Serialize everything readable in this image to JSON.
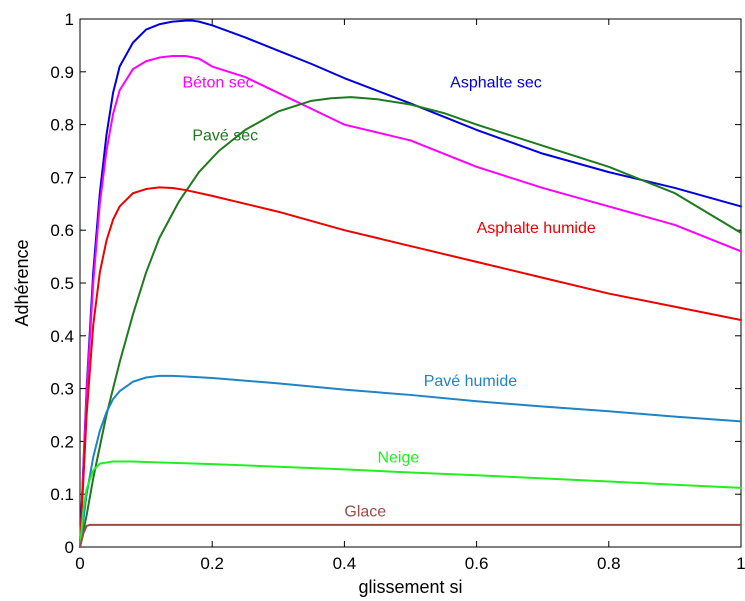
{
  "chart_data": {
    "type": "line",
    "xlabel": "glissement si",
    "ylabel": "Adhérence",
    "xlim": [
      0,
      1
    ],
    "ylim": [
      0,
      1
    ],
    "xticks": [
      "0",
      "0.2",
      "0.4",
      "0.6",
      "0.8",
      "1"
    ],
    "yticks": [
      "0",
      "0.1",
      "0.2",
      "0.3",
      "0.4",
      "0.5",
      "0.6",
      "0.7",
      "0.8",
      "0.9",
      "1"
    ],
    "grid": false,
    "series": [
      {
        "name": "Asphalte sec",
        "color": "#0000dd",
        "x": [
          0,
          0.01,
          0.02,
          0.03,
          0.04,
          0.05,
          0.06,
          0.08,
          0.1,
          0.12,
          0.14,
          0.16,
          0.17,
          0.18,
          0.2,
          0.25,
          0.3,
          0.35,
          0.4,
          0.5,
          0.6,
          0.7,
          0.8,
          0.9,
          1.0
        ],
        "y": [
          0,
          0.3,
          0.52,
          0.67,
          0.78,
          0.86,
          0.91,
          0.955,
          0.98,
          0.99,
          0.995,
          0.997,
          0.997,
          0.995,
          0.988,
          0.965,
          0.94,
          0.915,
          0.888,
          0.84,
          0.79,
          0.745,
          0.71,
          0.68,
          0.645
        ]
      },
      {
        "name": "Béton sec",
        "color": "#ff00ff",
        "x": [
          0,
          0.01,
          0.02,
          0.03,
          0.04,
          0.05,
          0.06,
          0.08,
          0.1,
          0.12,
          0.14,
          0.16,
          0.18,
          0.2,
          0.25,
          0.3,
          0.35,
          0.4,
          0.5,
          0.6,
          0.7,
          0.8,
          0.9,
          1.0
        ],
        "y": [
          0,
          0.29,
          0.5,
          0.65,
          0.75,
          0.82,
          0.865,
          0.905,
          0.92,
          0.927,
          0.93,
          0.93,
          0.925,
          0.91,
          0.89,
          0.86,
          0.83,
          0.8,
          0.77,
          0.72,
          0.68,
          0.645,
          0.61,
          0.56
        ]
      },
      {
        "name": "Pavé sec",
        "color": "#1e7a1e",
        "x": [
          0,
          0.01,
          0.02,
          0.04,
          0.06,
          0.08,
          0.1,
          0.12,
          0.15,
          0.18,
          0.21,
          0.25,
          0.3,
          0.35,
          0.38,
          0.41,
          0.45,
          0.5,
          0.55,
          0.6,
          0.7,
          0.8,
          0.9,
          1.0
        ],
        "y": [
          0,
          0.06,
          0.13,
          0.25,
          0.35,
          0.44,
          0.52,
          0.585,
          0.655,
          0.71,
          0.75,
          0.79,
          0.825,
          0.845,
          0.85,
          0.852,
          0.848,
          0.838,
          0.822,
          0.8,
          0.76,
          0.72,
          0.67,
          0.595
        ]
      },
      {
        "name": "Asphalte humide",
        "color": "#ee0000",
        "x": [
          0,
          0.01,
          0.02,
          0.03,
          0.04,
          0.05,
          0.06,
          0.08,
          0.1,
          0.12,
          0.14,
          0.16,
          0.2,
          0.25,
          0.3,
          0.4,
          0.5,
          0.6,
          0.7,
          0.8,
          0.9,
          1.0
        ],
        "y": [
          0,
          0.25,
          0.42,
          0.52,
          0.58,
          0.62,
          0.645,
          0.67,
          0.678,
          0.681,
          0.68,
          0.676,
          0.665,
          0.65,
          0.635,
          0.6,
          0.57,
          0.54,
          0.51,
          0.48,
          0.455,
          0.43
        ]
      },
      {
        "name": "Pavé humide",
        "color": "#1f84c6",
        "x": [
          0,
          0.01,
          0.02,
          0.03,
          0.04,
          0.05,
          0.06,
          0.08,
          0.1,
          0.12,
          0.14,
          0.16,
          0.2,
          0.3,
          0.4,
          0.5,
          0.6,
          0.7,
          0.8,
          0.9,
          1.0
        ],
        "y": [
          0,
          0.1,
          0.17,
          0.22,
          0.255,
          0.28,
          0.295,
          0.313,
          0.321,
          0.324,
          0.324,
          0.323,
          0.32,
          0.31,
          0.298,
          0.288,
          0.276,
          0.266,
          0.257,
          0.247,
          0.238
        ]
      },
      {
        "name": "Neige",
        "color": "#22ee22",
        "x": [
          0,
          0.005,
          0.01,
          0.02,
          0.03,
          0.05,
          0.08,
          0.1,
          0.2,
          0.3,
          0.4,
          0.5,
          0.6,
          0.7,
          0.8,
          0.9,
          1.0
        ],
        "y": [
          0,
          0.07,
          0.11,
          0.145,
          0.158,
          0.162,
          0.162,
          0.161,
          0.157,
          0.152,
          0.147,
          0.141,
          0.136,
          0.13,
          0.124,
          0.118,
          0.112
        ]
      },
      {
        "name": "Glace",
        "color": "#9c4a4a",
        "x": [
          0,
          0.005,
          0.01,
          0.015,
          0.2,
          0.4,
          0.6,
          0.8,
          1.0
        ],
        "y": [
          0,
          0.025,
          0.04,
          0.042,
          0.042,
          0.042,
          0.042,
          0.042,
          0.042
        ]
      }
    ],
    "annotations": [
      {
        "text": "Asphalte sec",
        "color": "#0000dd",
        "x": 0.56,
        "y": 0.87
      },
      {
        "text": "Béton sec",
        "color": "#ff00ff",
        "x": 0.155,
        "y": 0.87
      },
      {
        "text": "Pavé sec",
        "color": "#1e7a1e",
        "x": 0.17,
        "y": 0.77
      },
      {
        "text": "Asphalte humide",
        "color": "#ee0000",
        "x": 0.6,
        "y": 0.595
      },
      {
        "text": "Pavé humide",
        "color": "#1f84c6",
        "x": 0.52,
        "y": 0.305
      },
      {
        "text": "Neige",
        "color": "#22ee22",
        "x": 0.45,
        "y": 0.16
      },
      {
        "text": "Glace",
        "color": "#9c4a4a",
        "x": 0.4,
        "y": 0.058
      }
    ]
  }
}
